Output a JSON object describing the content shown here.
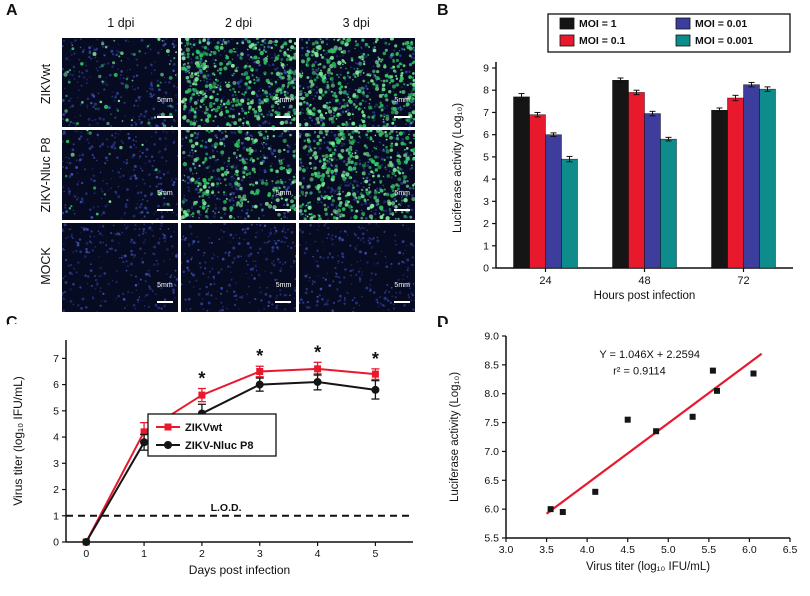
{
  "figure_labels": {
    "a": "A",
    "b": "B",
    "c": "C",
    "d": "D"
  },
  "panel_a": {
    "col_headers": [
      "1 dpi",
      "2 dpi",
      "3 dpi"
    ],
    "row_labels": [
      "ZIKVwt",
      "ZIKV-Nluc P8",
      "MOCK"
    ],
    "scale_bar_label": "5mm",
    "colors": {
      "background": "#070b22",
      "nuclei": "#2c3e9b",
      "fluorescence": "#35d06e"
    },
    "cells": [
      {
        "row": "ZIKVwt",
        "col": "1 dpi",
        "green_level": 1
      },
      {
        "row": "ZIKVwt",
        "col": "2 dpi",
        "green_level": 3
      },
      {
        "row": "ZIKVwt",
        "col": "3 dpi",
        "green_level": 3
      },
      {
        "row": "ZIKV-Nluc P8",
        "col": "1 dpi",
        "green_level": 0.5
      },
      {
        "row": "ZIKV-Nluc P8",
        "col": "2 dpi",
        "green_level": 2
      },
      {
        "row": "ZIKV-Nluc P8",
        "col": "3 dpi",
        "green_level": 3
      },
      {
        "row": "MOCK",
        "col": "1 dpi",
        "green_level": 0
      },
      {
        "row": "MOCK",
        "col": "2 dpi",
        "green_level": 0
      },
      {
        "row": "MOCK",
        "col": "3 dpi",
        "green_level": 0
      }
    ]
  },
  "chart_data": [
    {
      "id": "panel_b",
      "type": "bar",
      "categories": [
        "24",
        "48",
        "72"
      ],
      "series": [
        {
          "name": "MOI = 1",
          "color": "#151515",
          "values": [
            7.7,
            8.45,
            7.1
          ],
          "errors": [
            0.15,
            0.1,
            0.1
          ]
        },
        {
          "name": "MOI = 0.1",
          "color": "#e8192d",
          "values": [
            6.9,
            7.9,
            7.65
          ],
          "errors": [
            0.1,
            0.1,
            0.12
          ]
        },
        {
          "name": "MOI = 0.01",
          "color": "#3d3d9e",
          "values": [
            6.0,
            6.95,
            8.25
          ],
          "errors": [
            0.08,
            0.1,
            0.1
          ]
        },
        {
          "name": "MOI = 0.001",
          "color": "#0e8c8c",
          "values": [
            4.9,
            5.8,
            8.05
          ],
          "errors": [
            0.12,
            0.08,
            0.1
          ]
        }
      ],
      "xlabel": "Hours post infection",
      "ylabel": "Luciferase activity (Log₁₀)",
      "ylim": [
        0,
        9
      ],
      "yticks": [
        0,
        1,
        2,
        3,
        4,
        5,
        6,
        7,
        8,
        9
      ],
      "legend_position": "top"
    },
    {
      "id": "panel_c",
      "type": "line",
      "x": [
        0,
        1,
        2,
        3,
        4,
        5
      ],
      "series": [
        {
          "name": "ZIKVwt",
          "color": "#e8192d",
          "marker": "square",
          "values": [
            0,
            4.2,
            5.6,
            6.5,
            6.6,
            6.4
          ],
          "errors": [
            0,
            0.35,
            0.25,
            0.2,
            0.25,
            0.2
          ]
        },
        {
          "name": "ZIKV-Nluc P8",
          "color": "#151515",
          "marker": "circle",
          "values": [
            0,
            3.8,
            4.9,
            6.0,
            6.1,
            5.8
          ],
          "errors": [
            0,
            0.3,
            0.35,
            0.25,
            0.3,
            0.35
          ]
        }
      ],
      "significance_marks": {
        "symbol": "*",
        "x": [
          2,
          3,
          4,
          5
        ]
      },
      "lod_line": {
        "y": 1,
        "label": "L.O.D."
      },
      "xlabel": "Days post infection",
      "ylabel": "Virus titer (log₁₀ IFU/mL)",
      "xlim": [
        -0.35,
        5.65
      ],
      "ylim": [
        0,
        7.7
      ],
      "xticks": [
        0,
        1,
        2,
        3,
        4,
        5
      ],
      "yticks": [
        0,
        1,
        2,
        3,
        4,
        5,
        6,
        7
      ],
      "legend_position": "center"
    },
    {
      "id": "panel_d",
      "type": "scatter",
      "points": [
        [
          3.55,
          6.0
        ],
        [
          3.7,
          5.95
        ],
        [
          4.1,
          6.3
        ],
        [
          4.5,
          7.55
        ],
        [
          4.85,
          7.35
        ],
        [
          5.3,
          7.6
        ],
        [
          5.55,
          8.4
        ],
        [
          5.6,
          8.05
        ],
        [
          6.05,
          8.35
        ]
      ],
      "marker_color": "#151515",
      "fit_line": {
        "slope": 1.046,
        "intercept": 2.2594,
        "color": "#e8192d",
        "x_start": 3.5,
        "x_end": 6.15
      },
      "annotation": {
        "line1": "Y = 1.046X + 2.2594",
        "line2": "r² = 0.9114"
      },
      "xlabel": "Virus titer (log₁₀ IFU/mL)",
      "ylabel": "Luciferase activity (Log₁₀)",
      "xlim": [
        3.0,
        6.5
      ],
      "ylim": [
        5.5,
        9.0
      ],
      "xticks": [
        "3.0",
        "3.5",
        "4.0",
        "4.5",
        "5.0",
        "5.5",
        "6.0",
        "6.5"
      ],
      "yticks": [
        "5.5",
        "6.0",
        "6.5",
        "7.0",
        "7.5",
        "8.0",
        "8.5",
        "9.0"
      ]
    }
  ]
}
